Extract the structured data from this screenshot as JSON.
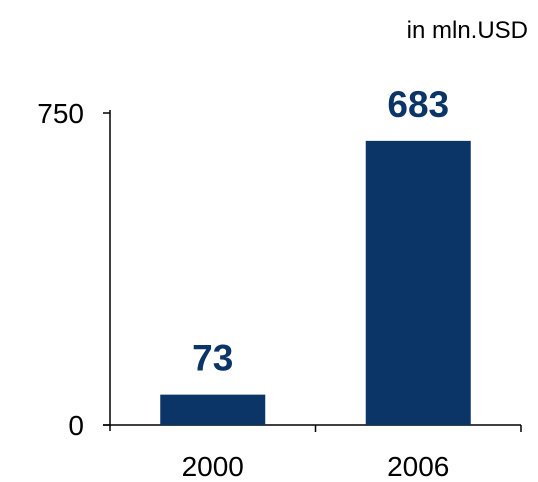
{
  "chart_data": {
    "type": "bar",
    "unit_label": "in mln.USD",
    "categories": [
      "2000",
      "2006"
    ],
    "values": [
      73,
      683
    ],
    "data_labels": [
      "73",
      "683"
    ],
    "ylim": [
      0,
      750
    ],
    "y_ticks": [
      0,
      750
    ],
    "y_tick_labels": [
      "0",
      "750"
    ],
    "title": "",
    "xlabel": "",
    "ylabel": "",
    "grid": false,
    "colors": {
      "bar": "#0b3566",
      "data_label": "#0b3566",
      "axis": "#000000"
    }
  }
}
